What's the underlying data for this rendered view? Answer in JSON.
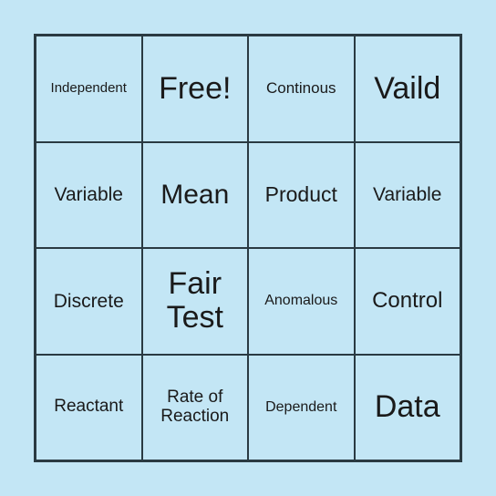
{
  "bingo": {
    "type": "table",
    "grid_size": 4,
    "background_color": "#c3e6f5",
    "border_color": "#2a3a42",
    "text_color": "#1a1a1a",
    "font_family": "Arial",
    "cells": [
      {
        "label": "Independent",
        "fontsize": 15
      },
      {
        "label": "Free!",
        "fontsize": 34
      },
      {
        "label": "Continous",
        "fontsize": 17
      },
      {
        "label": "Vaild",
        "fontsize": 34
      },
      {
        "label": "Variable",
        "fontsize": 21
      },
      {
        "label": "Mean",
        "fontsize": 30
      },
      {
        "label": "Product",
        "fontsize": 23
      },
      {
        "label": "Variable",
        "fontsize": 21
      },
      {
        "label": "Discrete",
        "fontsize": 21
      },
      {
        "label": "Fair Test",
        "fontsize": 34
      },
      {
        "label": "Anomalous",
        "fontsize": 16
      },
      {
        "label": "Control",
        "fontsize": 24
      },
      {
        "label": "Reactant",
        "fontsize": 19
      },
      {
        "label": "Rate of Reaction",
        "fontsize": 19
      },
      {
        "label": "Dependent",
        "fontsize": 16
      },
      {
        "label": "Data",
        "fontsize": 34
      }
    ]
  }
}
